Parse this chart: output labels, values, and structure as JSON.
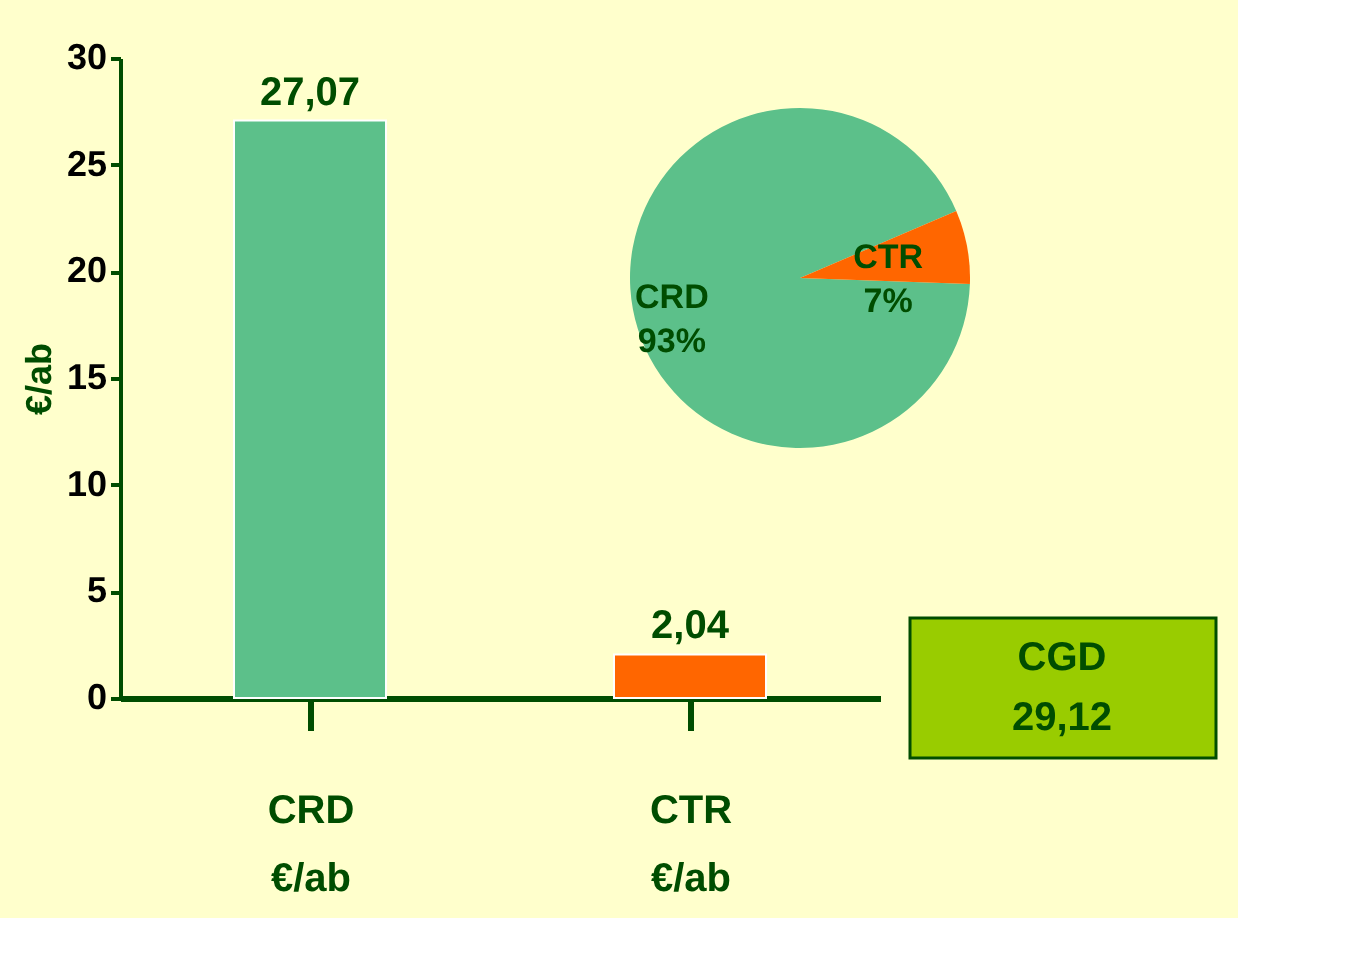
{
  "chart_data": [
    {
      "type": "bar",
      "categories": [
        "CRD\n€/ab",
        "CTR\n€/ab"
      ],
      "values": [
        27.07,
        2.04
      ],
      "colors": [
        "#5cc08a",
        "#ff6600"
      ],
      "value_labels": [
        "27,07",
        "2,04"
      ],
      "ylabel": "€/ab",
      "ylim": [
        0,
        30
      ],
      "yticks": [
        0,
        5,
        10,
        15,
        20,
        25,
        30
      ],
      "grid": false,
      "annotations": [
        "CGD\n29,12"
      ]
    },
    {
      "type": "pie",
      "categories": [
        "CRD",
        "CTR"
      ],
      "values": [
        93,
        7
      ],
      "colors": [
        "#5cc08a",
        "#ff6600"
      ],
      "value_labels": [
        "93%",
        "7%"
      ]
    }
  ]
}
